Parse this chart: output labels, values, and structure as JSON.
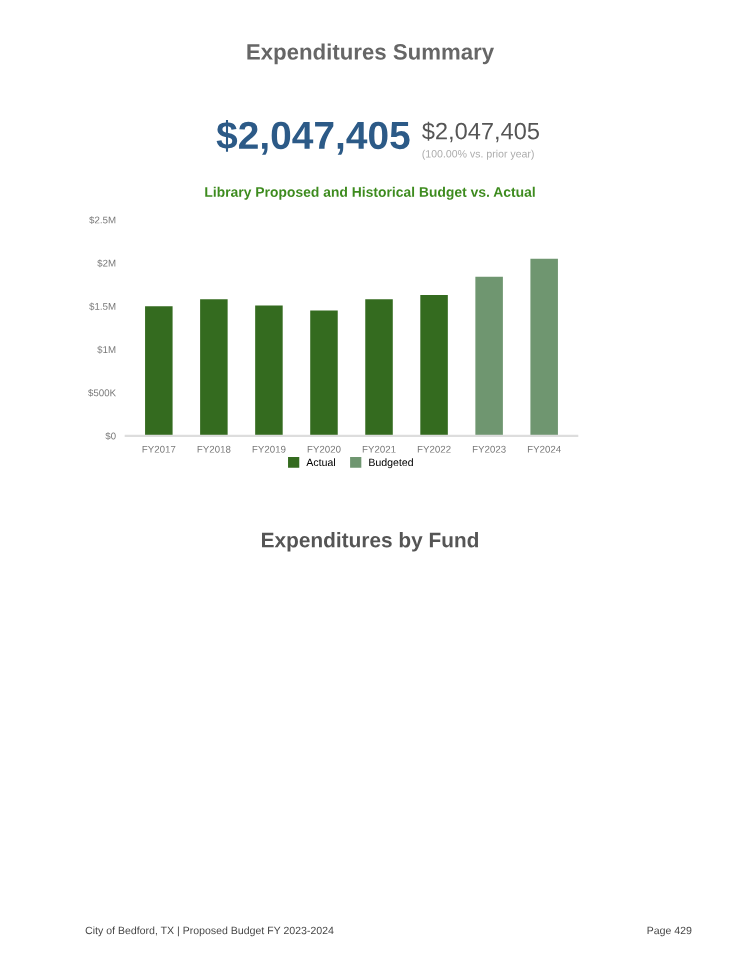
{
  "chart_data": {
    "type": "bar",
    "title": "Expenditures Summary",
    "subtitle": "Library Proposed and Historical Budget vs. Actual",
    "categories": [
      "FY2017",
      "FY2018",
      "FY2019",
      "FY2020",
      "FY2021",
      "FY2022",
      "FY2023",
      "FY2024"
    ],
    "series": [
      {
        "name": "Actual",
        "color": "#346b1f",
        "values": [
          1500000,
          1580000,
          1510000,
          1450000,
          1580000,
          1630000,
          null,
          null
        ]
      },
      {
        "name": "Budgeted",
        "color": "#6f9670",
        "values": [
          null,
          null,
          null,
          null,
          null,
          null,
          1840000,
          2050000
        ]
      }
    ],
    "ylim": [
      0,
      2500000
    ],
    "yticks": [
      {
        "value": 0,
        "label": "$0"
      },
      {
        "value": 500000,
        "label": "$500K"
      },
      {
        "value": 1000000,
        "label": "$1M"
      },
      {
        "value": 1500000,
        "label": "$1.5M"
      },
      {
        "value": 2000000,
        "label": "$2M"
      },
      {
        "value": 2500000,
        "label": "$2.5M"
      }
    ],
    "grid": false,
    "legend": "bottom",
    "annotations": [
      "$2,047,405",
      "$2,047,405",
      "(100.00% vs. prior year)",
      "Expenditures by Fund",
      "City of Bedford, TX | Proposed Budget FY 2023-2024",
      "Page 429"
    ]
  }
}
